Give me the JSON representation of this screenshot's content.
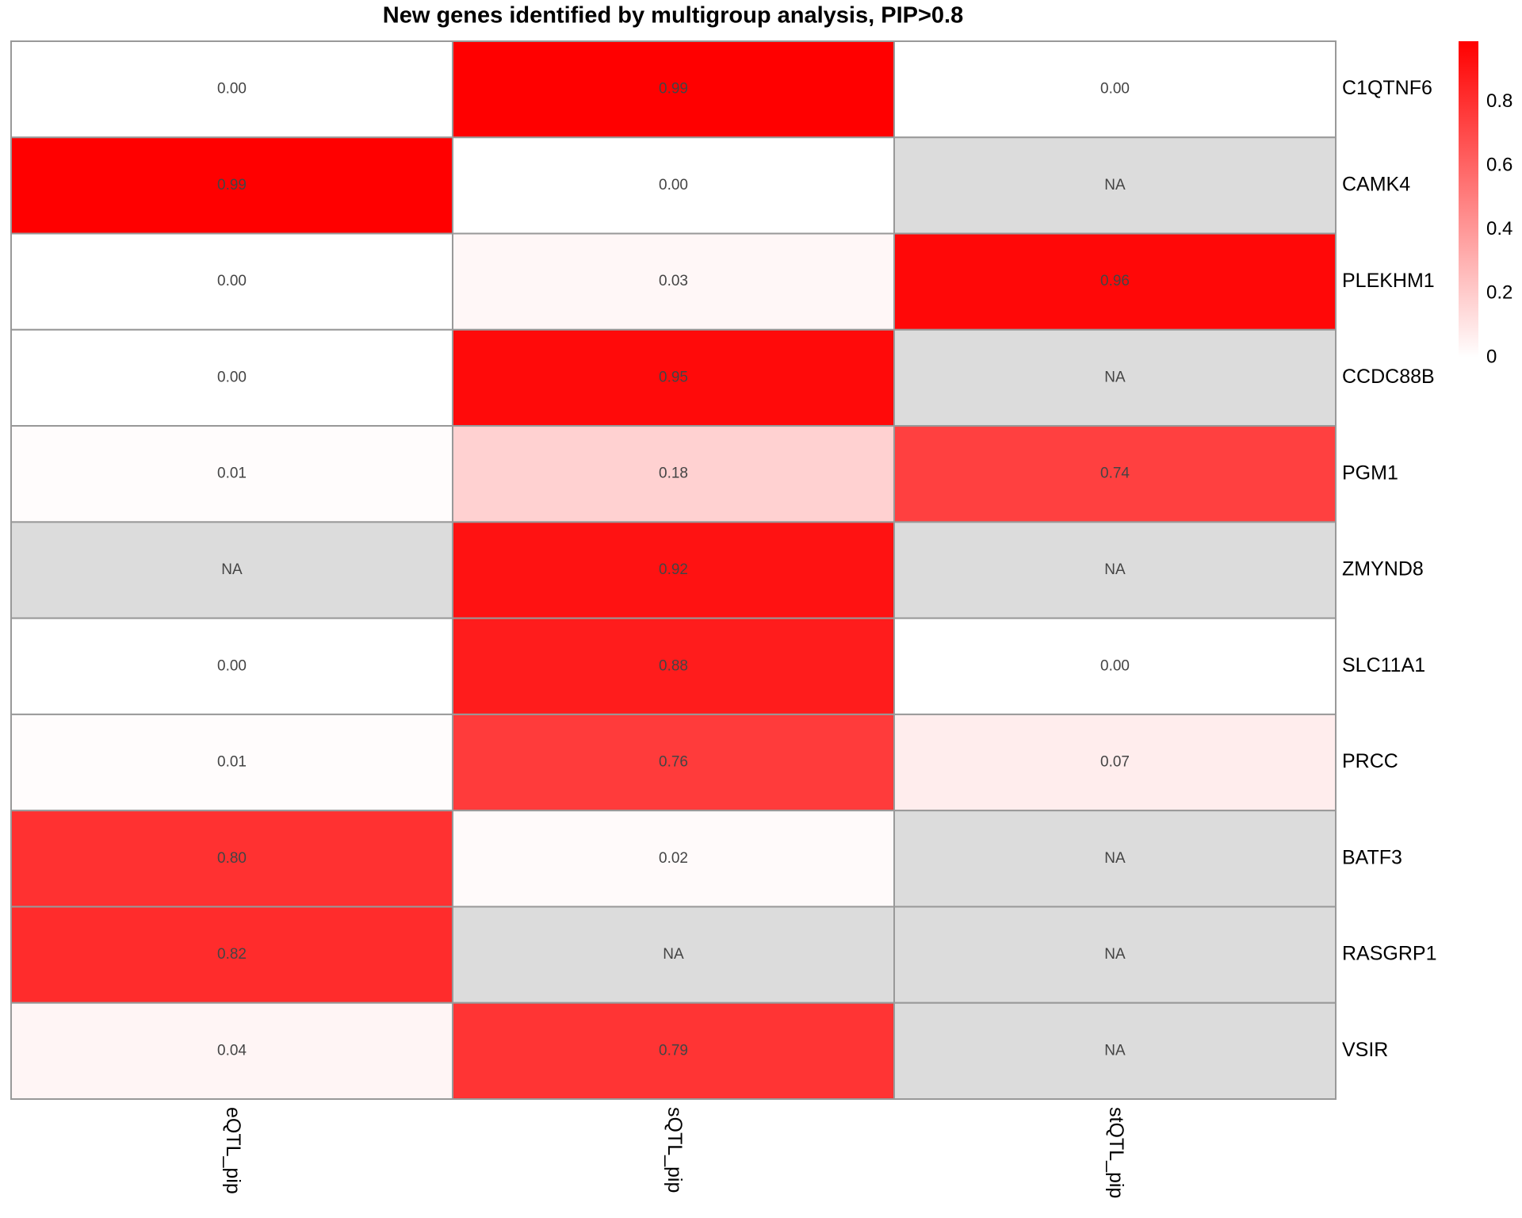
{
  "chart_data": {
    "type": "heatmap",
    "title": "New genes identified by multigroup analysis, PIP>0.8",
    "rows": [
      "C1QTNF6",
      "CAMK4",
      "PLEKHM1",
      "CCDC88B",
      "PGM1",
      "ZMYND8",
      "SLC11A1",
      "PRCC",
      "BATF3",
      "RASGRP1",
      "VSIR"
    ],
    "columns": [
      "eQTL_pip",
      "sQTL_pip",
      "stQTL_pip"
    ],
    "values": [
      [
        0,
        0.99,
        0
      ],
      [
        0.99,
        0,
        null
      ],
      [
        0,
        0.03,
        0.96
      ],
      [
        0,
        0.95,
        null
      ],
      [
        0.01,
        0.18,
        0.74
      ],
      [
        null,
        0.92,
        null
      ],
      [
        0,
        0.88,
        0
      ],
      [
        0.01,
        0.76,
        0.07
      ],
      [
        0.8,
        0.02,
        null
      ],
      [
        0.82,
        null,
        null
      ],
      [
        0.04,
        0.79,
        null
      ]
    ],
    "value_labels": [
      [
        "0.00",
        "0.99",
        "0.00"
      ],
      [
        "0.99",
        "0.00",
        "NA"
      ],
      [
        "0.00",
        "0.03",
        "0.96"
      ],
      [
        "0.00",
        "0.95",
        "NA"
      ],
      [
        "0.01",
        "0.18",
        "0.74"
      ],
      [
        "NA",
        "0.92",
        "NA"
      ],
      [
        "0.00",
        "0.88",
        "0.00"
      ],
      [
        "0.01",
        "0.76",
        "0.07"
      ],
      [
        "0.80",
        "0.02",
        "NA"
      ],
      [
        "0.82",
        "NA",
        "NA"
      ],
      [
        "0.04",
        "0.79",
        "NA"
      ]
    ],
    "zlim": [
      0,
      0.99
    ],
    "zticks": [
      0,
      0.2,
      0.4,
      0.6,
      0.8
    ],
    "low_color": "#ffffff",
    "high_color": "#ff0000",
    "na_color": "#dcdcdc"
  }
}
